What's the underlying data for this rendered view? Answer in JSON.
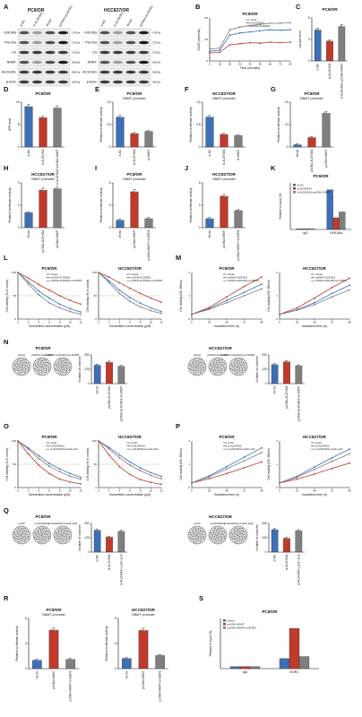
{
  "panels": {
    "A": {
      "label": "A",
      "left": {
        "title": "PC9/OR",
        "lanes": [
          "si-NC",
          "si-ALDH3A1",
          "Vector",
          "pcDNA-ALDH3A1"
        ],
        "rows": [
          "H3K18la",
          "Pan-Kla",
          "H3",
          "NNMT",
          "ALDH3A1",
          "β-Actin"
        ],
        "kda": [
          "17KDa",
          "17KDa",
          "17KDa",
          "30KDa",
          "50KDa",
          "42KDa"
        ]
      },
      "right": {
        "title": "HCC827/OR",
        "lanes": [
          "si-NC",
          "si-ALDH3A1",
          "Vector",
          "pcDNA-ALDH3A1"
        ],
        "rows": [
          "H3K18la",
          "Pan-Kla",
          "H3",
          "NNMT",
          "ALDH3A1",
          "β-Actin"
        ],
        "kda": [
          "17KDa",
          "17KDa",
          "17KDa",
          "30KDa",
          "50KDa",
          "42KDa"
        ]
      }
    },
    "B": {
      "label": "B",
      "title": "PC9/OR",
      "xlabel": "Time (minutes)",
      "ylabel": "ECAR (mpH/min)",
      "legend": [
        "si-NC",
        "si-ALDH3A1",
        "pcDNA-ALDH3A1"
      ]
    },
    "C": {
      "label": "C",
      "title": "PC9/OR",
      "ylabel": "Lactate level",
      "categories": [
        "si-NC",
        "si-ALDH3A1",
        "si-ALDH3A1+pcDNA-NNMT"
      ]
    },
    "D": {
      "label": "D",
      "title": "PC9/OR",
      "ylabel": "ATP level",
      "categories": [
        "si-NC",
        "si-ALDH3A1",
        "si-ALDH3A1+pcDNA-NNMT"
      ]
    },
    "E": {
      "label": "E",
      "title": "PC9/OR",
      "subtitle": "NNMT promoter",
      "ylabel": "Relative luciferase activity",
      "categories": [
        "si-NC",
        "si-ALDH3A1",
        "si-NNMT"
      ]
    },
    "F": {
      "label": "F",
      "title": "HCC827/OR",
      "subtitle": "NNMT promoter",
      "ylabel": "Relative luciferase activity",
      "categories": [
        "si-NC",
        "si-ALDH3A1",
        "si-NNMT"
      ]
    },
    "G": {
      "label": "G",
      "title": "PC9/OR",
      "subtitle": "NNMT promoter",
      "ylabel": "Relative luciferase activity",
      "categories": [
        "Vector",
        "pcDNA-ALDH3A1",
        "pcDNA-NNMT"
      ]
    },
    "H": {
      "label": "H",
      "title": "HCC827/OR",
      "subtitle": "NNMT promoter",
      "ylabel": "Relative luciferase activity",
      "categories": [
        "Vector",
        "pcDNA-ALDH3A1",
        "pcDNA-NNMT"
      ]
    },
    "I": {
      "label": "I",
      "title": "PC9/OR",
      "subtitle": "NNMT promoter",
      "ylabel": "Relative luciferase activity",
      "categories": [
        "Vector",
        "pcDNA-NNMT",
        "pcDNA-NNMT+si-EGR1"
      ]
    },
    "J": {
      "label": "J",
      "title": "HCC827/OR",
      "subtitle": "NNMT promoter",
      "ylabel": "Relative luciferase activity",
      "categories": [
        "Vector",
        "pcDNA-NNMT",
        "pcDNA-NNMT+si-EGR1"
      ]
    },
    "K": {
      "label": "K",
      "title": "PC9/OR",
      "ylabel": "Relative to input (%)",
      "legend": [
        "si-NC",
        "si-ALDH3A1",
        "si-ALDH3A1+pcDNA-NNMT"
      ],
      "groups": [
        "IgG",
        "H3K18la"
      ]
    },
    "L": {
      "label": "L",
      "titles": [
        "PC9/OR",
        "HCC827/OR"
      ],
      "xlabel": "Osimertinib concentration (μM)",
      "ylabel": "Cell viability (% of control)",
      "legend": [
        "Vector",
        "pcDNA-ALDH3A1",
        "pcDNA-ALDH3A1+si-NNMT"
      ]
    },
    "M": {
      "label": "M",
      "titles": [
        "PC9/OR",
        "HCC827/OR"
      ],
      "xlabel": "Incubation time (h)",
      "ylabel": "Cell viability (OD 450nm)",
      "legend": [
        "Vector",
        "pcDNA-ALDH3A1",
        "pcDNA-ALDH3A1+si-NNMT"
      ]
    },
    "N": {
      "label": "N",
      "titles": [
        "PC9/OR",
        "HCC827/OR"
      ],
      "ylabel": "Number of colonies",
      "categories": [
        "Vector",
        "pcDNA-ALDH3A1",
        "pcDNA-ALDH3A1+si-NNMT"
      ]
    },
    "O": {
      "label": "O",
      "titles": [
        "PC9/OR",
        "HCC827/OR"
      ],
      "xlabel": "Osimertinib concentration (μM)",
      "ylabel": "Cell viability (% of control)",
      "legend": [
        "si-NC",
        "si-ALDH3A1",
        "si-ALDH3A1+Lactic acid"
      ]
    },
    "P": {
      "label": "P",
      "titles": [
        "PC9/OR",
        "HCC827/OR"
      ],
      "xlabel": "Incubation time (h)",
      "ylabel": "Cell viability (OD 450nm)",
      "legend": [
        "si-NC",
        "si-ALDH3A1",
        "si-ALDH3A1+Lactic acid"
      ]
    },
    "Q": {
      "label": "Q",
      "titles": [
        "PC9/OR",
        "HCC827/OR"
      ],
      "ylabel": "Number of colonies",
      "categories": [
        "si-NC",
        "si-ALDH3A1",
        "si-ALDH3A1+Lactic acid"
      ]
    },
    "R": {
      "label": "R",
      "titles": [
        "PC9/OR",
        "HCC827/OR"
      ],
      "subtitle": "NNMT promoter",
      "ylabel": "Relative luciferase activity",
      "categories": [
        "Vector",
        "pcDNA-NNMT",
        "pcDNA-NNMT+si-EGR1"
      ]
    },
    "S": {
      "label": "S",
      "title": "PC9/OR",
      "ylabel": "Relative to input (%)",
      "legend": [
        "Vector",
        "pcDNA-NNMT",
        "pcDNA-NNMT+si-EGR1"
      ],
      "groups": [
        "IgG",
        "EGR1"
      ]
    }
  },
  "colors": {
    "blue": "#3d6fb5",
    "red": "#c0392b",
    "gray": "#7f7f7f",
    "lightblue": "#6aa5d8",
    "pink": "#e17a7a"
  },
  "chart_data": [
    {
      "panel": "B",
      "type": "line",
      "xlabel": "Time (minutes)",
      "ylabel": "ECAR (mpH/min)",
      "ylim": [
        0,
        80
      ],
      "x": [
        0,
        10,
        20,
        30,
        40,
        50,
        60,
        70,
        80
      ],
      "series": [
        {
          "name": "si-NC",
          "values": [
            18,
            20,
            48,
            52,
            54,
            56,
            58,
            57,
            58
          ]
        },
        {
          "name": "si-ALDH3A1",
          "values": [
            15,
            16,
            30,
            32,
            34,
            33,
            35,
            34,
            35
          ]
        },
        {
          "name": "pcDNA-ALDH3A1",
          "values": [
            22,
            24,
            58,
            63,
            66,
            68,
            70,
            70,
            71
          ]
        }
      ]
    },
    {
      "panel": "C",
      "type": "bar",
      "categories": [
        "si-NC",
        "si-ALDH3A1",
        "si-ALDH3A1+pcDNA-NNMT"
      ],
      "values": [
        3.6,
        2.3,
        4.0
      ],
      "ylim": [
        0,
        5
      ],
      "ylabel": "Lactate level"
    },
    {
      "panel": "D",
      "type": "bar",
      "categories": [
        "si-NC",
        "si-ALDH3A1",
        "si-ALDH3A1+pcDNA-NNMT"
      ],
      "values": [
        13.5,
        9.8,
        13.0
      ],
      "ylim": [
        0,
        15
      ],
      "ylabel": "ATP level"
    },
    {
      "panel": "E",
      "type": "bar",
      "categories": [
        "si-NC",
        "si-ALDH3A1",
        "si-NNMT"
      ],
      "values": [
        1.0,
        0.45,
        0.52
      ],
      "ylim": [
        0,
        1.5
      ],
      "ylabel": "Relative luciferase activity"
    },
    {
      "panel": "F",
      "type": "bar",
      "categories": [
        "si-NC",
        "si-ALDH3A1",
        "si-NNMT"
      ],
      "values": [
        1.0,
        0.42,
        0.38
      ],
      "ylim": [
        0,
        1.5
      ],
      "ylabel": "Relative luciferase activity"
    },
    {
      "panel": "G",
      "type": "bar",
      "categories": [
        "Vector",
        "pcDNA-ALDH3A1",
        "pcDNA-NNMT"
      ],
      "values": [
        1.0,
        4.2,
        15.0
      ],
      "ylim": [
        0,
        20
      ],
      "ylabel": "Relative luciferase activity"
    },
    {
      "panel": "H",
      "type": "bar",
      "categories": [
        "Vector",
        "pcDNA-ALDH3A1",
        "pcDNA-NNMT"
      ],
      "values": [
        1.0,
        2.5,
        2.6
      ],
      "ylim": [
        0,
        3
      ],
      "ylabel": "Relative luciferase activity"
    },
    {
      "panel": "I",
      "type": "bar",
      "categories": [
        "Vector",
        "pcDNA-NNMT",
        "pcDNA-NNMT+si-EGR1"
      ],
      "values": [
        1.0,
        4.8,
        1.2
      ],
      "ylim": [
        0,
        6
      ],
      "ylabel": "Relative luciferase activity"
    },
    {
      "panel": "J",
      "type": "bar",
      "categories": [
        "Vector",
        "pcDNA-NNMT",
        "pcDNA-NNMT+si-EGR1"
      ],
      "values": [
        1.0,
        3.5,
        1.9
      ],
      "ylim": [
        0,
        5
      ],
      "ylabel": "Relative luciferase activity"
    },
    {
      "panel": "K",
      "type": "bar",
      "categories": [
        "IgG",
        "H3K18la"
      ],
      "series": [
        {
          "name": "si-NC",
          "values": [
            0.3,
            17
          ]
        },
        {
          "name": "si-ALDH3A1",
          "values": [
            0.3,
            5
          ]
        },
        {
          "name": "si-ALDH3A1+pcDNA-NNMT",
          "values": [
            0.3,
            7.5
          ]
        }
      ],
      "ylim": [
        0,
        20
      ]
    },
    {
      "panel": "L-PC9/OR",
      "type": "line",
      "x": [
        0,
        2,
        4,
        6,
        8,
        10,
        12
      ],
      "ylim": [
        0,
        100
      ],
      "series": [
        {
          "name": "Vector",
          "values": [
            100,
            80,
            60,
            45,
            32,
            22,
            15
          ]
        },
        {
          "name": "pcDNA-ALDH3A1",
          "values": [
            100,
            88,
            74,
            62,
            50,
            40,
            32
          ]
        },
        {
          "name": "pcDNA-ALDH3A1+si-NNMT",
          "values": [
            100,
            75,
            52,
            35,
            24,
            16,
            10
          ]
        }
      ]
    },
    {
      "panel": "L-HCC827/OR",
      "type": "line",
      "x": [
        0,
        2,
        4,
        6,
        8,
        10,
        12
      ],
      "ylim": [
        0,
        100
      ],
      "series": [
        {
          "name": "Vector",
          "values": [
            100,
            82,
            62,
            46,
            34,
            24,
            16
          ]
        },
        {
          "name": "pcDNA-ALDH3A1",
          "values": [
            100,
            90,
            78,
            66,
            55,
            45,
            36
          ]
        },
        {
          "name": "pcDNA-ALDH3A1+si-NNMT",
          "values": [
            100,
            78,
            55,
            38,
            26,
            18,
            12
          ]
        }
      ]
    },
    {
      "panel": "M-PC9/OR",
      "type": "line",
      "x": [
        0,
        24,
        48,
        72,
        96
      ],
      "ylim": [
        0,
        2
      ],
      "series": [
        {
          "name": "Vector",
          "values": [
            0.2,
            0.45,
            0.8,
            1.15,
            1.5
          ]
        },
        {
          "name": "pcDNA-ALDH3A1",
          "values": [
            0.2,
            0.5,
            0.95,
            1.4,
            1.8
          ]
        },
        {
          "name": "pcDNA-ALDH3A1+si-NNMT",
          "values": [
            0.2,
            0.42,
            0.7,
            1.0,
            1.3
          ]
        }
      ]
    },
    {
      "panel": "M-HCC827/OR",
      "type": "line",
      "x": [
        0,
        24,
        48,
        72,
        96
      ],
      "ylim": [
        0,
        2
      ],
      "series": [
        {
          "name": "Vector",
          "values": [
            0.2,
            0.4,
            0.7,
            1.1,
            1.45
          ]
        },
        {
          "name": "pcDNA-ALDH3A1",
          "values": [
            0.2,
            0.48,
            0.9,
            1.35,
            1.75
          ]
        },
        {
          "name": "pcDNA-ALDH3A1+si-NNMT",
          "values": [
            0.2,
            0.38,
            0.62,
            0.95,
            1.25
          ]
        }
      ]
    },
    {
      "panel": "N-PC9/OR",
      "type": "bar",
      "categories": [
        "Vector",
        "pcDNA-ALDH3A1",
        "pcDNA-ALDH3A1+si-NNMT"
      ],
      "values": [
        160,
        185,
        150
      ],
      "ylim": [
        0,
        250
      ]
    },
    {
      "panel": "N-HCC827/OR",
      "type": "bar",
      "categories": [
        "Vector",
        "pcDNA-ALDH3A1",
        "pcDNA-ALDH3A1+si-NNMT"
      ],
      "values": [
        165,
        190,
        155
      ],
      "ylim": [
        0,
        250
      ]
    },
    {
      "panel": "O-PC9/OR",
      "type": "line",
      "x": [
        0,
        2,
        4,
        6,
        8,
        10,
        12
      ],
      "ylim": [
        0,
        100
      ],
      "series": [
        {
          "name": "si-NC",
          "values": [
            100,
            85,
            68,
            52,
            40,
            30,
            22
          ]
        },
        {
          "name": "si-ALDH3A1",
          "values": [
            100,
            72,
            48,
            30,
            18,
            12,
            8
          ]
        },
        {
          "name": "si-ALDH3A1+Lactic acid",
          "values": [
            100,
            82,
            62,
            46,
            34,
            24,
            18
          ]
        }
      ]
    },
    {
      "panel": "O-HCC827/OR",
      "type": "line",
      "x": [
        0,
        2,
        4,
        6,
        8,
        10,
        12
      ],
      "ylim": [
        0,
        100
      ],
      "series": [
        {
          "name": "si-NC",
          "values": [
            100,
            86,
            70,
            55,
            42,
            32,
            24
          ]
        },
        {
          "name": "si-ALDH3A1",
          "values": [
            100,
            70,
            45,
            28,
            17,
            11,
            7
          ]
        },
        {
          "name": "si-ALDH3A1+Lactic acid",
          "values": [
            100,
            83,
            64,
            48,
            36,
            26,
            19
          ]
        }
      ]
    },
    {
      "panel": "P-PC9/OR",
      "type": "line",
      "x": [
        0,
        24,
        48,
        72,
        96
      ],
      "ylim": [
        0,
        2
      ],
      "series": [
        {
          "name": "si-NC",
          "values": [
            0.2,
            0.5,
            0.9,
            1.3,
            1.7
          ]
        },
        {
          "name": "si-ALDH3A1",
          "values": [
            0.2,
            0.38,
            0.6,
            0.85,
            1.1
          ]
        },
        {
          "name": "si-ALDH3A1+Lactic acid",
          "values": [
            0.2,
            0.46,
            0.8,
            1.15,
            1.5
          ]
        }
      ]
    },
    {
      "panel": "P-HCC827/OR",
      "type": "line",
      "x": [
        0,
        24,
        48,
        72,
        96
      ],
      "ylim": [
        0,
        2
      ],
      "series": [
        {
          "name": "si-NC",
          "values": [
            0.2,
            0.48,
            0.88,
            1.28,
            1.65
          ]
        },
        {
          "name": "si-ALDH3A1",
          "values": [
            0.2,
            0.36,
            0.58,
            0.82,
            1.05
          ]
        },
        {
          "name": "si-ALDH3A1+Lactic acid",
          "values": [
            0.2,
            0.44,
            0.78,
            1.12,
            1.45
          ]
        }
      ]
    },
    {
      "panel": "Q-PC9/OR",
      "type": "bar",
      "categories": [
        "si-NC",
        "si-ALDH3A1",
        "si-ALDH3A1+Lactic acid"
      ],
      "values": [
        190,
        130,
        180
      ],
      "ylim": [
        0,
        250
      ]
    },
    {
      "panel": "Q-HCC827/OR",
      "type": "bar",
      "categories": [
        "si-NC",
        "si-ALDH3A1",
        "si-ALDH3A1+Lactic acid"
      ],
      "values": [
        195,
        120,
        185
      ],
      "ylim": [
        0,
        250
      ]
    },
    {
      "panel": "R-PC9/OR",
      "type": "bar",
      "categories": [
        "Vector",
        "pcDNA-NNMT",
        "pcDNA-NNMT+si-EGR1"
      ],
      "values": [
        1.0,
        4.6,
        1.1
      ],
      "ylim": [
        0,
        6
      ]
    },
    {
      "panel": "R-HCC827/OR",
      "type": "bar",
      "categories": [
        "Vector",
        "pcDNA-NNMT",
        "pcDNA-NNMT+si-EGR1"
      ],
      "values": [
        1.0,
        3.8,
        1.3
      ],
      "ylim": [
        0,
        5
      ]
    },
    {
      "panel": "S",
      "type": "bar",
      "categories": [
        "IgG",
        "EGR1"
      ],
      "series": [
        {
          "name": "Vector",
          "values": [
            0.2,
            1.0
          ]
        },
        {
          "name": "pcDNA-NNMT",
          "values": [
            0.2,
            4.0
          ]
        },
        {
          "name": "pcDNA-NNMT+si-EGR1",
          "values": [
            0.2,
            1.2
          ]
        }
      ],
      "ylim": [
        0,
        5
      ]
    }
  ]
}
